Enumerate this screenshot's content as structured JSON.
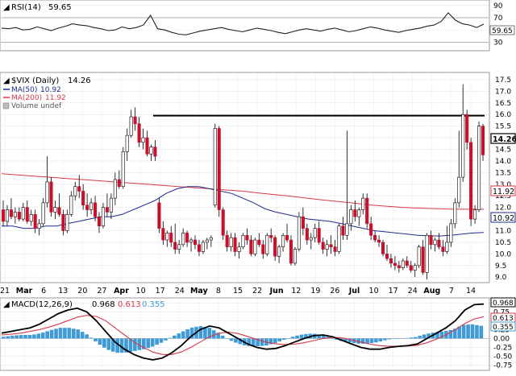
{
  "rsi_panel": {
    "label": "RSI(14)",
    "value": "59.65",
    "ticks": [
      "90",
      "70",
      "50",
      "30"
    ],
    "current_tag": "59.65"
  },
  "price_panel": {
    "title": "$VIX (Daily)",
    "title_value": "14.26",
    "legend": [
      {
        "label": "MA(50)",
        "value": "10.92",
        "color": "#1f2a8c"
      },
      {
        "label": "MA(200)",
        "value": "11.92",
        "color": "#d6384a"
      },
      {
        "label": "Volume undef",
        "value": "",
        "color": "#888888"
      }
    ],
    "y_ticks": [
      "17.5",
      "17.0",
      "16.5",
      "16.0",
      "15.5",
      "15.0",
      "14.5",
      "14.0",
      "13.5",
      "13.0",
      "12.5",
      "12.0",
      "11.5",
      "11.0",
      "10.5",
      "10.0",
      "9.5",
      "9.0"
    ],
    "value_tags": [
      {
        "text": "14.26",
        "color": "#000000"
      },
      {
        "text": "11.92",
        "color": "#d6384a"
      },
      {
        "text": "10.92",
        "color": "#1f2a8c"
      }
    ],
    "x_labels": [
      "21",
      "Mar",
      "6",
      "13",
      "20",
      "27",
      "Apr",
      "10",
      "17",
      "24",
      "May",
      "8",
      "15",
      "22",
      "Jun",
      "12",
      "19",
      "26",
      "Jul",
      "10",
      "17",
      "24",
      "Aug",
      "7",
      "14"
    ]
  },
  "macd_panel": {
    "label": "MACD(12,26,9)",
    "values": [
      {
        "text": "0.968",
        "color": "#000000"
      },
      {
        "text": "0.613",
        "color": "#d6384a"
      },
      {
        "text": "0.355",
        "color": "#3f9ad6"
      }
    ],
    "y_ticks": [
      "1.00",
      "0.75",
      "0.50",
      "0.25",
      "0.00",
      "-0.25",
      "-0.50",
      "-0.75"
    ],
    "tags": [
      {
        "text": "0.968",
        "color": "#000000"
      },
      {
        "text": "0.613",
        "color": "#d6384a"
      },
      {
        "text": "0.355",
        "color": "#3f9ad6"
      }
    ]
  },
  "colors": {
    "up_candle": "#ffffff",
    "down_candle": "#c8102e",
    "ma50": "#1f2a8c",
    "ma200": "#d6384a",
    "rsi_line": "#222222",
    "macd_line": "#000000",
    "signal_line": "#d6384a",
    "histogram": "#3f9ad6",
    "resistance_line": "#000000"
  },
  "chart_data": {
    "type": "candlestick",
    "symbol": "$VIX",
    "period": "Daily",
    "y_range": [
      8.8,
      17.6
    ],
    "resistance_level": 15.95,
    "current": {
      "close": 14.26,
      "ma50": 10.92,
      "ma200": 11.92,
      "rsi14": 59.65,
      "macd": 0.968,
      "signal": 0.613,
      "hist": 0.355
    },
    "candles_ohlc": [
      [
        11.9,
        12.3,
        11.2,
        11.4
      ],
      [
        11.4,
        12.1,
        11.2,
        11.9
      ],
      [
        11.9,
        12.4,
        11.5,
        11.6
      ],
      [
        11.6,
        12.0,
        11.3,
        11.8
      ],
      [
        11.8,
        12.0,
        11.4,
        11.5
      ],
      [
        11.5,
        12.2,
        11.4,
        12.0
      ],
      [
        12.0,
        12.3,
        11.3,
        11.4
      ],
      [
        11.4,
        11.9,
        11.2,
        11.7
      ],
      [
        11.7,
        11.9,
        10.9,
        11.1
      ],
      [
        11.1,
        11.5,
        10.8,
        11.3
      ],
      [
        11.3,
        12.4,
        11.2,
        12.2
      ],
      [
        12.2,
        14.2,
        12.0,
        13.1
      ],
      [
        13.1,
        13.3,
        11.6,
        11.8
      ],
      [
        11.8,
        12.3,
        11.5,
        12.0
      ],
      [
        12.0,
        12.6,
        11.6,
        11.7
      ],
      [
        11.7,
        11.9,
        10.8,
        11.0
      ],
      [
        11.0,
        11.9,
        10.9,
        11.7
      ],
      [
        11.7,
        12.7,
        11.6,
        12.5
      ],
      [
        12.5,
        13.1,
        12.3,
        12.9
      ],
      [
        12.9,
        13.4,
        12.4,
        12.7
      ],
      [
        12.7,
        13.0,
        11.9,
        12.1
      ],
      [
        12.1,
        12.6,
        11.6,
        11.9
      ],
      [
        11.9,
        12.4,
        11.7,
        12.2
      ],
      [
        12.2,
        12.5,
        11.4,
        11.6
      ],
      [
        11.6,
        11.8,
        10.9,
        11.2
      ],
      [
        11.2,
        12.2,
        11.1,
        12.0
      ],
      [
        12.0,
        12.6,
        11.6,
        11.8
      ],
      [
        11.8,
        12.6,
        11.5,
        12.4
      ],
      [
        12.4,
        13.5,
        12.1,
        13.2
      ],
      [
        13.2,
        13.6,
        12.8,
        12.9
      ],
      [
        12.9,
        14.6,
        12.8,
        14.4
      ],
      [
        14.4,
        15.4,
        14.0,
        15.1
      ],
      [
        15.1,
        16.2,
        15.0,
        15.9
      ],
      [
        15.9,
        16.3,
        15.3,
        15.6
      ],
      [
        15.6,
        15.9,
        14.6,
        14.8
      ],
      [
        14.8,
        15.4,
        14.5,
        15.0
      ],
      [
        15.0,
        15.3,
        14.2,
        14.3
      ],
      [
        14.3,
        14.7,
        14.0,
        14.6
      ],
      [
        14.6,
        14.9,
        14.0,
        14.2
      ],
      [
        12.2,
        12.4,
        10.9,
        11.1
      ],
      [
        11.1,
        11.4,
        10.4,
        10.6
      ],
      [
        10.6,
        11.0,
        10.3,
        10.9
      ],
      [
        10.9,
        11.2,
        10.3,
        10.5
      ],
      [
        10.5,
        11.3,
        10.0,
        10.2
      ],
      [
        10.2,
        10.6,
        10.0,
        10.4
      ],
      [
        10.4,
        11.1,
        10.3,
        10.9
      ],
      [
        10.9,
        11.0,
        10.3,
        10.5
      ],
      [
        10.5,
        10.7,
        10.1,
        10.6
      ],
      [
        10.6,
        10.8,
        10.2,
        10.4
      ],
      [
        10.4,
        10.6,
        9.9,
        10.1
      ],
      [
        10.1,
        10.6,
        10.0,
        10.5
      ],
      [
        10.5,
        10.7,
        10.2,
        10.6
      ],
      [
        10.6,
        10.8,
        10.3,
        10.7
      ],
      [
        12.1,
        15.6,
        12.0,
        15.4
      ],
      [
        15.4,
        15.5,
        11.6,
        11.9
      ],
      [
        11.9,
        12.0,
        10.6,
        10.8
      ],
      [
        10.8,
        11.0,
        10.1,
        10.3
      ],
      [
        10.3,
        10.9,
        10.1,
        10.7
      ],
      [
        10.7,
        10.9,
        9.9,
        10.1
      ],
      [
        10.1,
        10.5,
        9.8,
        10.3
      ],
      [
        10.3,
        10.9,
        10.2,
        10.8
      ],
      [
        10.8,
        11.1,
        10.4,
        10.6
      ],
      [
        10.6,
        10.8,
        9.9,
        10.0
      ],
      [
        10.0,
        10.7,
        9.9,
        10.6
      ],
      [
        10.6,
        10.9,
        10.3,
        10.4
      ],
      [
        10.4,
        10.6,
        9.8,
        10.0
      ],
      [
        10.0,
        10.9,
        9.9,
        10.8
      ],
      [
        10.8,
        11.1,
        10.5,
        10.7
      ],
      [
        10.7,
        10.8,
        9.7,
        9.9
      ],
      [
        9.9,
        10.4,
        9.6,
        10.3
      ],
      [
        10.3,
        10.9,
        10.1,
        10.8
      ],
      [
        10.8,
        11.3,
        10.5,
        10.6
      ],
      [
        10.6,
        10.8,
        9.5,
        9.6
      ],
      [
        9.6,
        10.3,
        9.5,
        10.2
      ],
      [
        10.2,
        11.8,
        10.1,
        11.6
      ],
      [
        11.6,
        12.0,
        10.8,
        11.1
      ],
      [
        11.1,
        11.3,
        10.4,
        10.6
      ],
      [
        10.6,
        10.9,
        10.2,
        10.7
      ],
      [
        10.7,
        11.3,
        10.5,
        11.1
      ],
      [
        11.1,
        11.4,
        10.4,
        10.5
      ],
      [
        10.5,
        10.7,
        10.0,
        10.2
      ],
      [
        10.2,
        10.6,
        9.9,
        10.4
      ],
      [
        10.4,
        10.8,
        10.0,
        10.3
      ],
      [
        10.3,
        10.6,
        9.9,
        10.1
      ],
      [
        10.1,
        11.3,
        10.0,
        11.2
      ],
      [
        11.2,
        11.6,
        10.6,
        10.8
      ],
      [
        10.8,
        15.3,
        10.6,
        11.3
      ],
      [
        11.3,
        12.1,
        11.0,
        11.9
      ],
      [
        11.9,
        12.3,
        11.4,
        11.6
      ],
      [
        11.6,
        12.0,
        11.2,
        11.9
      ],
      [
        11.9,
        12.6,
        11.7,
        12.4
      ],
      [
        12.4,
        12.6,
        11.1,
        11.3
      ],
      [
        11.3,
        11.6,
        10.6,
        10.8
      ],
      [
        10.8,
        11.0,
        10.5,
        10.6
      ],
      [
        10.6,
        10.8,
        10.3,
        10.5
      ],
      [
        10.5,
        10.6,
        9.9,
        10.0
      ],
      [
        10.0,
        10.4,
        9.7,
        9.8
      ],
      [
        9.8,
        10.0,
        9.4,
        9.6
      ],
      [
        9.6,
        9.9,
        9.3,
        9.5
      ],
      [
        9.5,
        9.7,
        9.2,
        9.4
      ],
      [
        9.4,
        9.8,
        9.3,
        9.7
      ],
      [
        9.7,
        9.9,
        9.4,
        9.5
      ],
      [
        9.5,
        9.7,
        9.2,
        9.3
      ],
      [
        9.3,
        9.6,
        9.0,
        9.5
      ],
      [
        9.5,
        10.4,
        9.4,
        10.3
      ],
      [
        10.3,
        10.6,
        9.1,
        9.2
      ],
      [
        9.2,
        10.9,
        8.9,
        10.8
      ],
      [
        10.8,
        11.0,
        10.2,
        10.4
      ],
      [
        10.4,
        10.7,
        10.1,
        10.6
      ],
      [
        10.6,
        10.9,
        10.2,
        10.3
      ],
      [
        10.3,
        10.6,
        9.9,
        10.1
      ],
      [
        10.1,
        11.2,
        10.0,
        10.5
      ],
      [
        10.5,
        11.5,
        10.3,
        11.3
      ],
      [
        11.3,
        12.4,
        11.1,
        12.2
      ],
      [
        12.2,
        15.3,
        12.0,
        13.3
      ],
      [
        13.3,
        17.3,
        13.1,
        16.0
      ],
      [
        16.0,
        16.2,
        14.5,
        14.8
      ],
      [
        14.8,
        15.0,
        11.2,
        11.5
      ],
      [
        11.5,
        12.1,
        11.3,
        11.9
      ],
      [
        11.9,
        15.7,
        11.8,
        15.5
      ],
      [
        15.5,
        15.6,
        14.0,
        14.26
      ]
    ],
    "ma50": [
      11.2,
      11.2,
      11.1,
      11.1,
      11.2,
      11.2,
      11.3,
      11.4,
      11.5,
      11.6,
      11.6,
      11.7,
      11.9,
      12.1,
      12.3,
      12.6,
      12.8,
      12.9,
      12.9,
      12.8,
      12.7,
      12.6,
      12.4,
      12.2,
      11.95,
      11.8,
      11.7,
      11.6,
      11.5,
      11.45,
      11.4,
      11.3,
      11.2,
      11.1,
      11.0,
      10.95,
      10.9,
      10.85,
      10.8,
      10.78,
      10.77,
      10.8,
      10.85,
      10.9,
      10.92
    ],
    "ma200": [
      13.45,
      13.4,
      13.35,
      13.3,
      13.25,
      13.2,
      13.15,
      13.1,
      13.05,
      13.0,
      12.95,
      12.9,
      12.85,
      12.8,
      12.75,
      12.7,
      12.62,
      12.55,
      12.48,
      12.4,
      12.32,
      12.25,
      12.18,
      12.1,
      12.05,
      12.0,
      11.97,
      11.95,
      11.93,
      11.92,
      11.92
    ],
    "rsi": [
      53,
      52,
      54,
      50,
      51,
      55,
      52,
      49,
      53,
      56,
      60,
      58,
      57,
      54,
      52,
      49,
      50,
      55,
      52,
      54,
      58,
      74,
      52,
      50,
      46,
      43,
      42,
      45,
      48,
      50,
      52,
      54,
      51,
      49,
      47,
      50,
      53,
      51,
      49,
      46,
      44,
      47,
      50,
      52,
      50,
      48,
      51,
      53,
      50,
      47,
      49,
      52,
      55,
      53,
      50,
      48,
      46,
      49,
      51,
      53,
      56,
      58,
      64,
      78,
      66,
      60,
      58,
      54,
      59.65
    ],
    "macd": [
      0.15,
      0.2,
      0.25,
      0.3,
      0.4,
      0.55,
      0.7,
      0.8,
      0.85,
      0.75,
      0.5,
      0.2,
      -0.1,
      -0.3,
      -0.45,
      -0.55,
      -0.6,
      -0.55,
      -0.4,
      -0.2,
      0.05,
      0.25,
      0.35,
      0.3,
      0.15,
      0.0,
      -0.15,
      -0.25,
      -0.3,
      -0.28,
      -0.2,
      -0.1,
      0.0,
      0.08,
      0.1,
      0.05,
      -0.05,
      -0.15,
      -0.25,
      -0.3,
      -0.3,
      -0.25,
      -0.22,
      -0.2,
      -0.15,
      0.0,
      0.15,
      0.3,
      0.5,
      0.8,
      0.95,
      0.968
    ],
    "signal": [
      0.1,
      0.12,
      0.15,
      0.2,
      0.25,
      0.32,
      0.4,
      0.5,
      0.6,
      0.65,
      0.62,
      0.5,
      0.3,
      0.1,
      -0.1,
      -0.25,
      -0.38,
      -0.45,
      -0.45,
      -0.38,
      -0.25,
      -0.1,
      0.05,
      0.15,
      0.18,
      0.14,
      0.06,
      -0.03,
      -0.1,
      -0.15,
      -0.17,
      -0.16,
      -0.12,
      -0.06,
      0.0,
      0.03,
      0.02,
      -0.04,
      -0.1,
      -0.16,
      -0.2,
      -0.22,
      -0.22,
      -0.21,
      -0.19,
      -0.12,
      -0.02,
      0.1,
      0.25,
      0.42,
      0.55,
      0.613
    ]
  }
}
